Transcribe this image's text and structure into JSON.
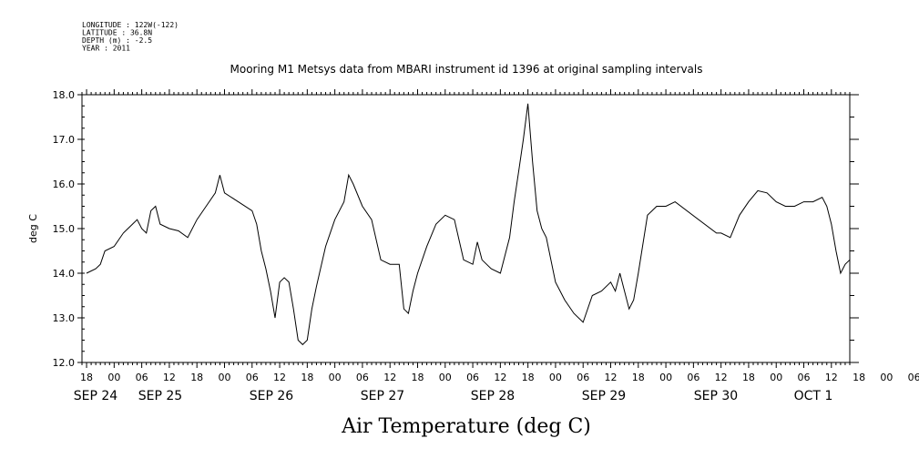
{
  "header": {
    "meta_lines": [
      "LONGITUDE : 122W(-122)",
      "LATITUDE : 36.8N",
      "DEPTH (m) : -2.5",
      "YEAR : 2011"
    ],
    "title": "Mooring M1 Metsys data from MBARI instrument id 1396 at original sampling intervals"
  },
  "chart_data": {
    "type": "line",
    "title": "Mooring M1 Metsys data from MBARI instrument id 1396 at original sampling intervals",
    "xlabel": "Air Temperature (deg C)",
    "ylabel": "deg C",
    "ylim": [
      12.0,
      18.0
    ],
    "y_ticks": [
      "12.0",
      "13.0",
      "14.0",
      "15.0",
      "16.0",
      "17.0",
      "18.0"
    ],
    "xlim": [
      "2011-09-24T17:00",
      "2011-10-01T16:00"
    ],
    "x_tick_labels": [
      "18",
      "00",
      "06",
      "12",
      "18",
      "00",
      "06",
      "12",
      "18",
      "00",
      "06",
      "12",
      "18",
      "00",
      "06",
      "12",
      "18",
      "00",
      "06",
      "12",
      "18",
      "00",
      "06",
      "12",
      "18",
      "00",
      "06",
      "12",
      "18",
      "00",
      "06",
      "12"
    ],
    "day_labels": [
      "SEP 24",
      "SEP 25",
      "SEP 26",
      "SEP 27",
      "SEP 28",
      "SEP 29",
      "SEP 30",
      "OCT 1"
    ],
    "grid": false,
    "series": [
      {
        "x": [
          "2011-09-24T18:00",
          "2011-09-24T20:00",
          "2011-09-24T21:00",
          "2011-09-24T22:00",
          "2011-09-25T00:00",
          "2011-09-25T02:00",
          "2011-09-25T04:00",
          "2011-09-25T05:00",
          "2011-09-25T06:00",
          "2011-09-25T07:00",
          "2011-09-25T08:00",
          "2011-09-25T09:00",
          "2011-09-25T10:00",
          "2011-09-25T12:00",
          "2011-09-25T14:00",
          "2011-09-25T16:00",
          "2011-09-25T18:00",
          "2011-09-25T20:00",
          "2011-09-25T22:00",
          "2011-09-25T23:00",
          "2011-09-26T00:00",
          "2011-09-26T06:00",
          "2011-09-26T07:00",
          "2011-09-26T08:00",
          "2011-09-26T09:00",
          "2011-09-26T10:00",
          "2011-09-26T11:00",
          "2011-09-26T12:00",
          "2011-09-26T13:00",
          "2011-09-26T14:00",
          "2011-09-26T15:00",
          "2011-09-26T16:00",
          "2011-09-26T17:00",
          "2011-09-26T18:00",
          "2011-09-26T19:00",
          "2011-09-26T20:00",
          "2011-09-26T22:00",
          "2011-09-27T00:00",
          "2011-09-27T02:00",
          "2011-09-27T03:00",
          "2011-09-27T04:00",
          "2011-09-27T06:00",
          "2011-09-27T08:00",
          "2011-09-27T10:00",
          "2011-09-27T12:00",
          "2011-09-27T14:00",
          "2011-09-27T15:00",
          "2011-09-27T16:00",
          "2011-09-27T17:00",
          "2011-09-27T18:00",
          "2011-09-27T20:00",
          "2011-09-27T22:00",
          "2011-09-28T00:00",
          "2011-09-28T02:00",
          "2011-09-28T04:00",
          "2011-09-28T06:00",
          "2011-09-28T07:00",
          "2011-09-28T08:00",
          "2011-09-28T10:00",
          "2011-09-28T12:00",
          "2011-09-28T14:00",
          "2011-09-28T15:00",
          "2011-09-28T16:00",
          "2011-09-28T17:00",
          "2011-09-28T18:00",
          "2011-09-28T19:00",
          "2011-09-28T20:00",
          "2011-09-28T21:00",
          "2011-09-28T22:00",
          "2011-09-29T00:00",
          "2011-09-29T01:00",
          "2011-09-29T02:00",
          "2011-09-29T04:00",
          "2011-09-29T06:00",
          "2011-09-29T08:00",
          "2011-09-29T10:00",
          "2011-09-29T12:00",
          "2011-09-29T13:00",
          "2011-09-29T14:00",
          "2011-09-29T16:00",
          "2011-09-29T17:00",
          "2011-09-29T18:00",
          "2011-09-29T20:00",
          "2011-09-29T22:00",
          "2011-09-30T00:00",
          "2011-09-30T02:00",
          "2011-09-30T11:00",
          "2011-09-30T12:00",
          "2011-09-30T14:00",
          "2011-09-30T16:00",
          "2011-09-30T18:00",
          "2011-09-30T20:00",
          "2011-09-30T22:00",
          "2011-10-01T00:00",
          "2011-10-01T02:00",
          "2011-10-01T04:00",
          "2011-10-01T06:00",
          "2011-10-01T08:00",
          "2011-10-01T10:00",
          "2011-10-01T11:00",
          "2011-10-01T12:00",
          "2011-10-01T13:00",
          "2011-10-01T14:00",
          "2011-10-01T15:00",
          "2011-10-01T16:00"
        ],
        "y": [
          14.0,
          14.1,
          14.2,
          14.5,
          14.6,
          14.9,
          15.1,
          15.2,
          15.0,
          14.9,
          15.4,
          15.5,
          15.1,
          15.0,
          14.95,
          14.8,
          15.2,
          15.5,
          15.8,
          16.2,
          15.8,
          15.4,
          15.1,
          14.5,
          14.1,
          13.6,
          13.0,
          13.8,
          13.9,
          13.8,
          13.2,
          12.5,
          12.4,
          12.5,
          13.2,
          13.7,
          14.6,
          15.2,
          15.6,
          16.2,
          16.0,
          15.5,
          15.2,
          14.3,
          14.2,
          14.2,
          13.2,
          13.1,
          13.6,
          14.0,
          14.6,
          15.1,
          15.3,
          15.2,
          14.3,
          14.2,
          14.7,
          14.3,
          14.1,
          14.0,
          14.8,
          15.6,
          16.3,
          17.0,
          17.8,
          16.5,
          15.4,
          15.0,
          14.8,
          13.8,
          13.6,
          13.4,
          13.1,
          12.9,
          13.5,
          13.6,
          13.8,
          13.6,
          14.0,
          13.2,
          13.4,
          14.0,
          15.3,
          15.5,
          15.5,
          15.6,
          14.9,
          14.9,
          14.8,
          15.3,
          15.6,
          15.85,
          15.8,
          15.6,
          15.5,
          15.5,
          15.6,
          15.6,
          15.7,
          15.5,
          15.1,
          14.5,
          14.0,
          14.2,
          14.3
        ]
      }
    ]
  }
}
